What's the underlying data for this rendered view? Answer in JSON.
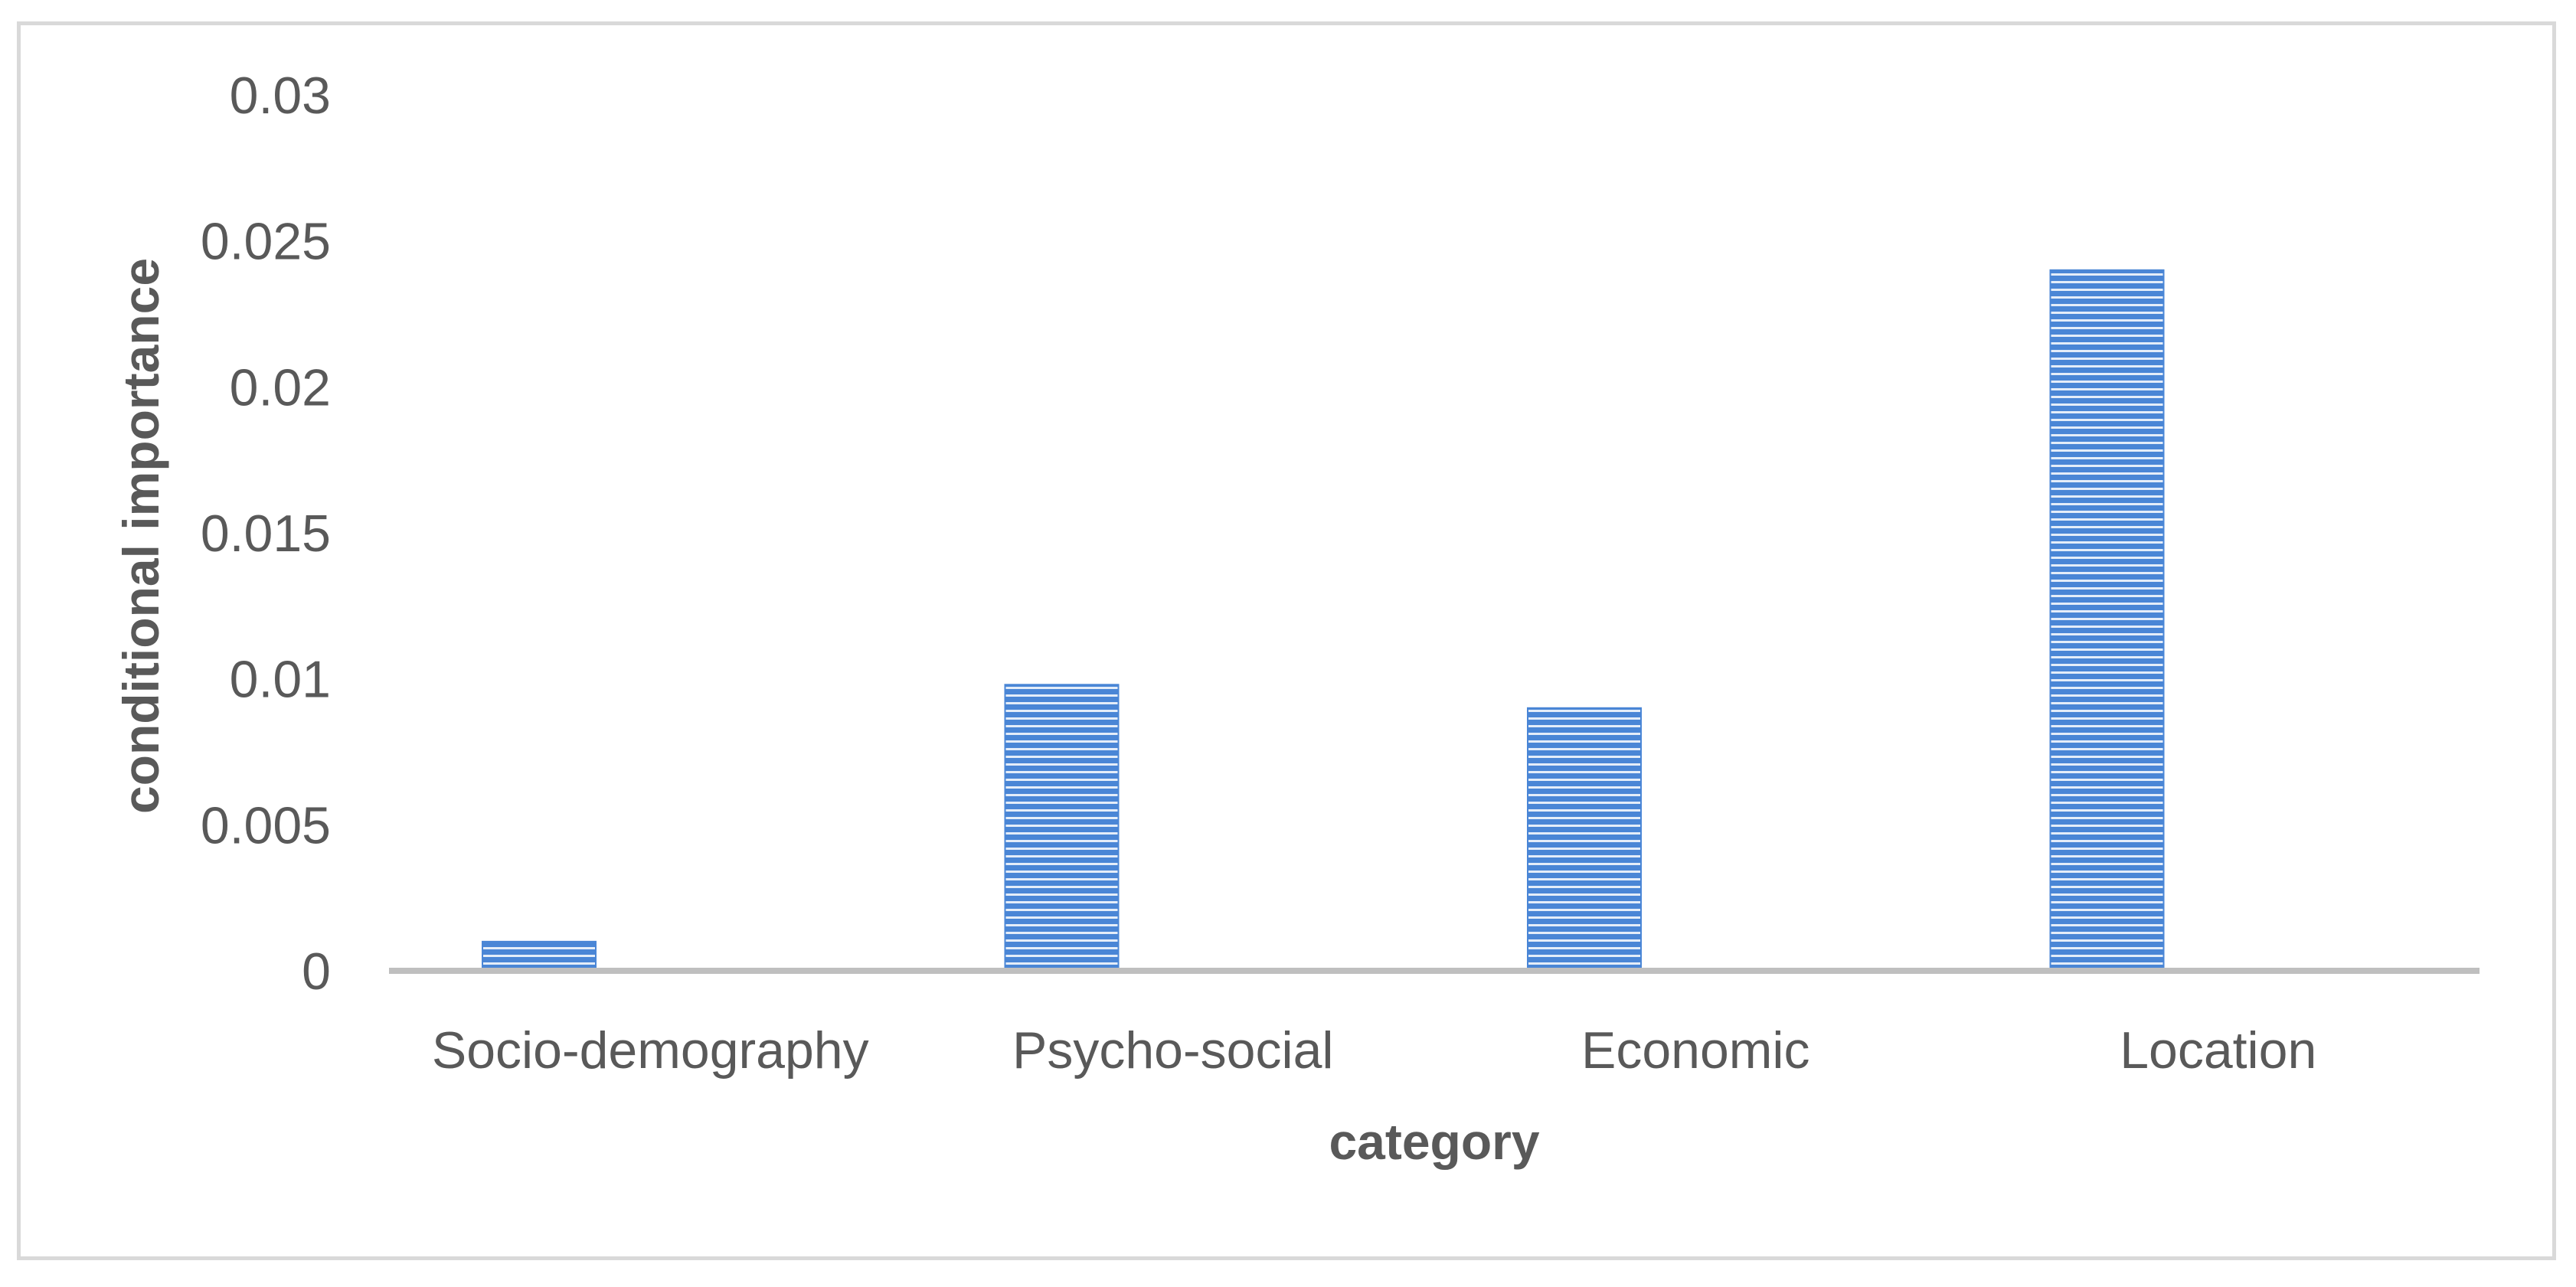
{
  "chart_data": {
    "type": "bar",
    "categories": [
      "Socio-demography",
      "Psycho-social",
      "Economic",
      "Location"
    ],
    "values": [
      0.001,
      0.0098,
      0.009,
      0.024
    ],
    "title": "",
    "xlabel": "category",
    "ylabel": "conditional importance",
    "ylim": [
      0,
      0.03
    ],
    "yticks": [
      "0",
      "0.005",
      "0.01",
      "0.015",
      "0.02",
      "0.025",
      "0.03"
    ],
    "grid": false,
    "legend": "none",
    "colors": {
      "bar": "#4a86d6",
      "bar_stripe": "#ffffff",
      "axis": "#bfbfbf",
      "text": "#595959",
      "frame": "#d9d9d9"
    }
  }
}
